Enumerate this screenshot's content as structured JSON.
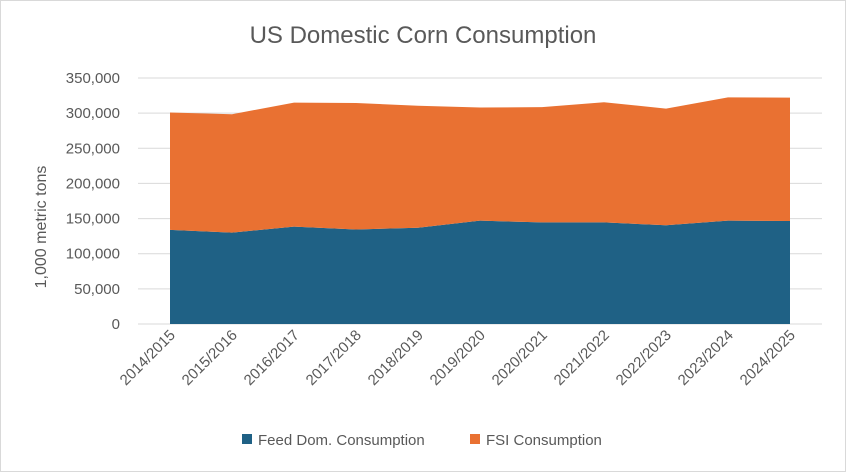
{
  "chart_data": {
    "type": "area",
    "stacked": true,
    "title": "US Domestic Corn Consumption",
    "xlabel": "",
    "ylabel": "1,000 metric tons",
    "ylim": [
      0,
      350000
    ],
    "yticks": [
      0,
      50000,
      100000,
      150000,
      200000,
      250000,
      300000,
      350000
    ],
    "ytick_labels": [
      "0",
      "50,000",
      "100,000",
      "150,000",
      "200,000",
      "250,000",
      "300,000",
      "350,000"
    ],
    "grid": true,
    "legend_position": "bottom",
    "categories": [
      "2014/2015",
      "2015/2016",
      "2016/2017",
      "2017/2018",
      "2018/2019",
      "2019/2020",
      "2020/2021",
      "2021/2022",
      "2022/2023",
      "2023/2024",
      "2024/2025"
    ],
    "series": [
      {
        "name": "Feed Dom. Consumption",
        "color": "#1f6185",
        "values": [
          134000,
          130000,
          138500,
          134500,
          137000,
          147000,
          144500,
          144500,
          140500,
          147000,
          146500
        ]
      },
      {
        "name": "FSI Consumption",
        "color": "#e97132",
        "values": [
          167000,
          168500,
          176500,
          180000,
          173500,
          161000,
          164000,
          171000,
          166000,
          175500,
          175500
        ]
      }
    ]
  }
}
